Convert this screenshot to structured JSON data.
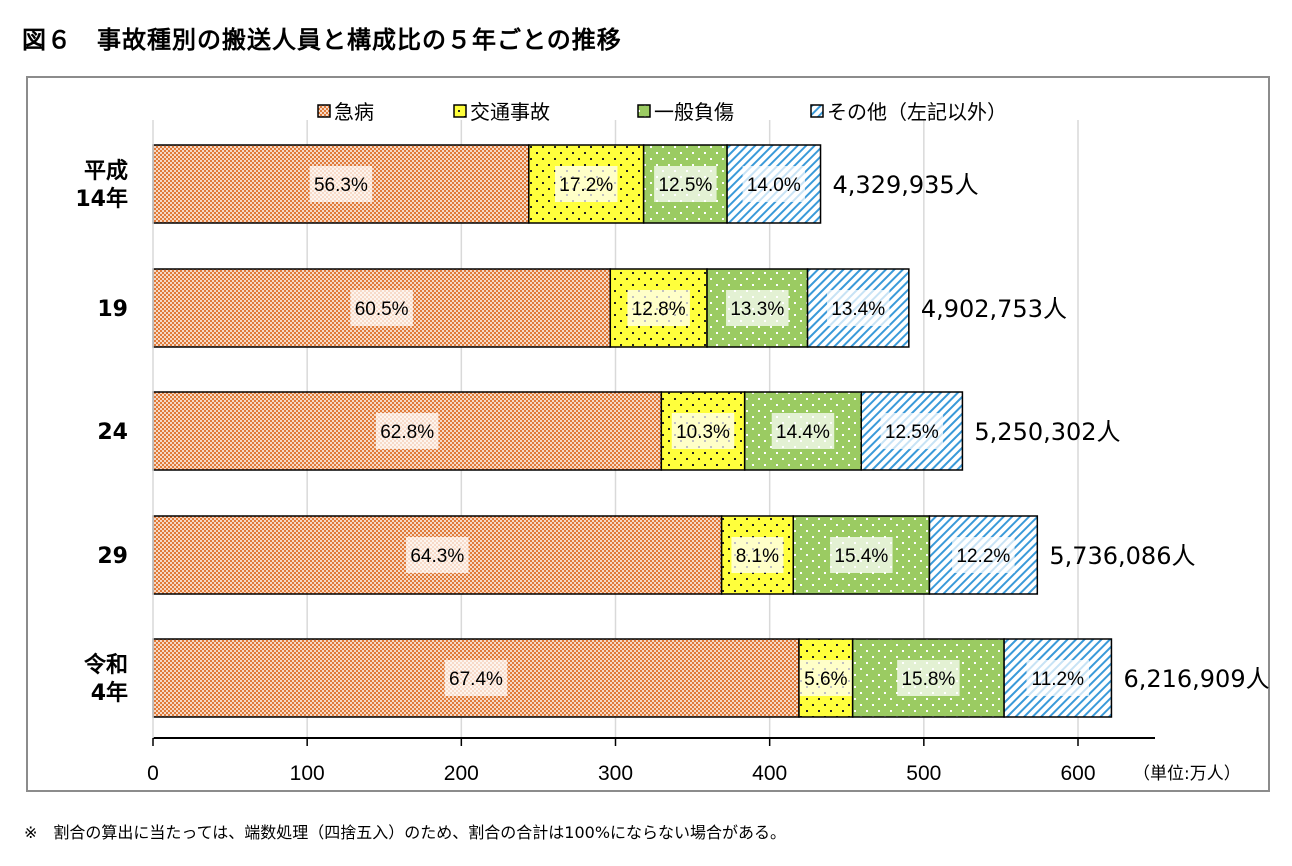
{
  "title": "図６　事故種別の搬送人員と構成比の５年ごとの推移",
  "footnote": "※　割合の算出に当たっては、端数処理（四捨五入）のため、割合の合計は100%にならない場合がある。",
  "chart_data": {
    "type": "bar",
    "orientation": "horizontal",
    "stacked": true,
    "title": "図６　事故種別の搬送人員と構成比の５年ごとの推移",
    "xlabel": "",
    "ylabel": "",
    "unit_label": "（単位:万人）",
    "xlim": [
      0,
      650
    ],
    "xticks": [
      0,
      100,
      200,
      300,
      400,
      500,
      600
    ],
    "xtick_labels": [
      "0",
      "100",
      "200",
      "300",
      "400",
      "500",
      "600"
    ],
    "grid": true,
    "legend_position": "top",
    "categories": [
      {
        "label_lines": [
          "平成",
          "14年"
        ],
        "total": 4329935,
        "total_label": "4,329,935人"
      },
      {
        "label_lines": [
          "19"
        ],
        "total": 4902753,
        "total_label": "4,902,753人"
      },
      {
        "label_lines": [
          "24"
        ],
        "total": 5250302,
        "total_label": "5,250,302人"
      },
      {
        "label_lines": [
          "29"
        ],
        "total": 5736086,
        "total_label": "5,736,086人"
      },
      {
        "label_lines": [
          "令和",
          "4年"
        ],
        "total": 6216909,
        "total_label": "6,216,909人"
      }
    ],
    "series": [
      {
        "name": "急病",
        "color": "#E07B39",
        "pattern": "checker",
        "percent": [
          56.3,
          60.5,
          62.8,
          64.3,
          67.4
        ],
        "labels": [
          "56.3%",
          "60.5%",
          "62.8%",
          "64.3%",
          "67.4%"
        ]
      },
      {
        "name": "交通事故",
        "color": "#FFFF3C",
        "pattern": "dots-dark",
        "percent": [
          17.2,
          12.8,
          10.3,
          8.1,
          5.6
        ],
        "labels": [
          "17.2%",
          "12.8%",
          "10.3%",
          "8.1%",
          "5.6%"
        ]
      },
      {
        "name": "一般負傷",
        "color": "#9BCB62",
        "pattern": "dots-light",
        "percent": [
          12.5,
          13.3,
          14.4,
          15.4,
          15.8
        ],
        "labels": [
          "12.5%",
          "13.3%",
          "14.4%",
          "15.4%",
          "15.8%"
        ]
      },
      {
        "name": "その他（左記以外）",
        "color": "#3A9AD9",
        "pattern": "diagonal",
        "percent": [
          14.0,
          13.4,
          12.5,
          12.2,
          11.2
        ],
        "labels": [
          "14.0%",
          "13.4%",
          "12.5%",
          "12.2%",
          "11.2%"
        ]
      }
    ]
  }
}
